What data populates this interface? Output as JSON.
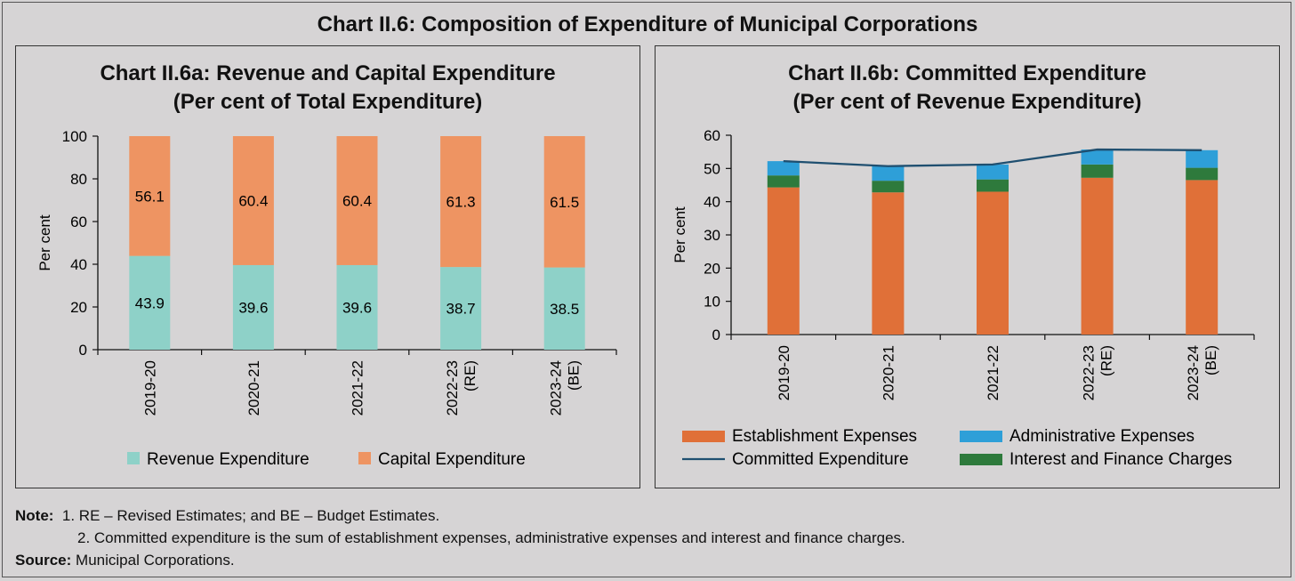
{
  "title": "Chart II.6: Composition of Expenditure of Municipal Corporations",
  "chart_data": [
    {
      "type": "bar",
      "stacked": true,
      "title": "Chart II.6a: Revenue and Capital Expenditure",
      "subtitle": "(Per cent of Total Expenditure)",
      "ylabel": "Per cent",
      "ylim": [
        0,
        100
      ],
      "yticks": [
        0,
        20,
        40,
        60,
        80,
        100
      ],
      "categories": [
        [
          "2019-20"
        ],
        [
          "2020-21"
        ],
        [
          "2021-22"
        ],
        [
          "2022-23",
          "(RE)"
        ],
        [
          "2023-24",
          "(BE)"
        ]
      ],
      "series": [
        {
          "name": "Revenue Expenditure",
          "color": "#8ed1c8",
          "values": [
            43.9,
            39.6,
            39.6,
            38.7,
            38.5
          ],
          "labels": [
            "43.9",
            "39.6",
            "39.6",
            "38.7",
            "38.5"
          ]
        },
        {
          "name": "Capital Expenditure",
          "color": "#ee9462",
          "values": [
            56.1,
            60.4,
            60.4,
            61.3,
            61.5
          ],
          "labels": [
            "56.1",
            "60.4",
            "60.4",
            "61.3",
            "61.5"
          ]
        }
      ],
      "legend": "bottom",
      "grid": false
    },
    {
      "type": "bar",
      "stacked": true,
      "title": "Chart II.6b: Committed Expenditure",
      "subtitle": "(Per cent of Revenue Expenditure)",
      "ylabel": "Per cent",
      "ylim": [
        0,
        60
      ],
      "yticks": [
        0,
        10,
        20,
        30,
        40,
        50,
        60
      ],
      "categories": [
        [
          "2019-20"
        ],
        [
          "2020-21"
        ],
        [
          "2021-22"
        ],
        [
          "2022-23",
          "(RE)"
        ],
        [
          "2023-24",
          "(BE)"
        ]
      ],
      "series": [
        {
          "name": "Establishment Expenses",
          "color": "#e07038",
          "values": [
            44.3,
            42.8,
            43.0,
            47.2,
            46.5
          ]
        },
        {
          "name": "Interest and Finance Charges",
          "color": "#2e7a3c",
          "values": [
            3.6,
            3.5,
            3.7,
            4.0,
            3.7
          ]
        },
        {
          "name": "Administrative Expenses",
          "color": "#2e9fd8",
          "values": [
            4.3,
            4.4,
            4.5,
            4.5,
            5.3
          ]
        }
      ],
      "line": {
        "name": "Committed Expenditure",
        "color": "#1f4f70",
        "values": [
          52.2,
          50.7,
          51.2,
          55.7,
          55.5
        ]
      },
      "legend": "bottom",
      "legend_items": [
        "Establishment Expenses",
        "Administrative Expenses",
        "Committed Expenditure",
        "Interest and Finance Charges"
      ],
      "grid": false
    }
  ],
  "notes": {
    "label": "Note:",
    "line1": "1. RE – Revised Estimates; and BE – Budget Estimates.",
    "line2": "2. Committed expenditure is the sum of establishment expenses, administrative expenses and interest and finance charges.",
    "source_label": "Source:",
    "source_text": "Municipal Corporations."
  }
}
